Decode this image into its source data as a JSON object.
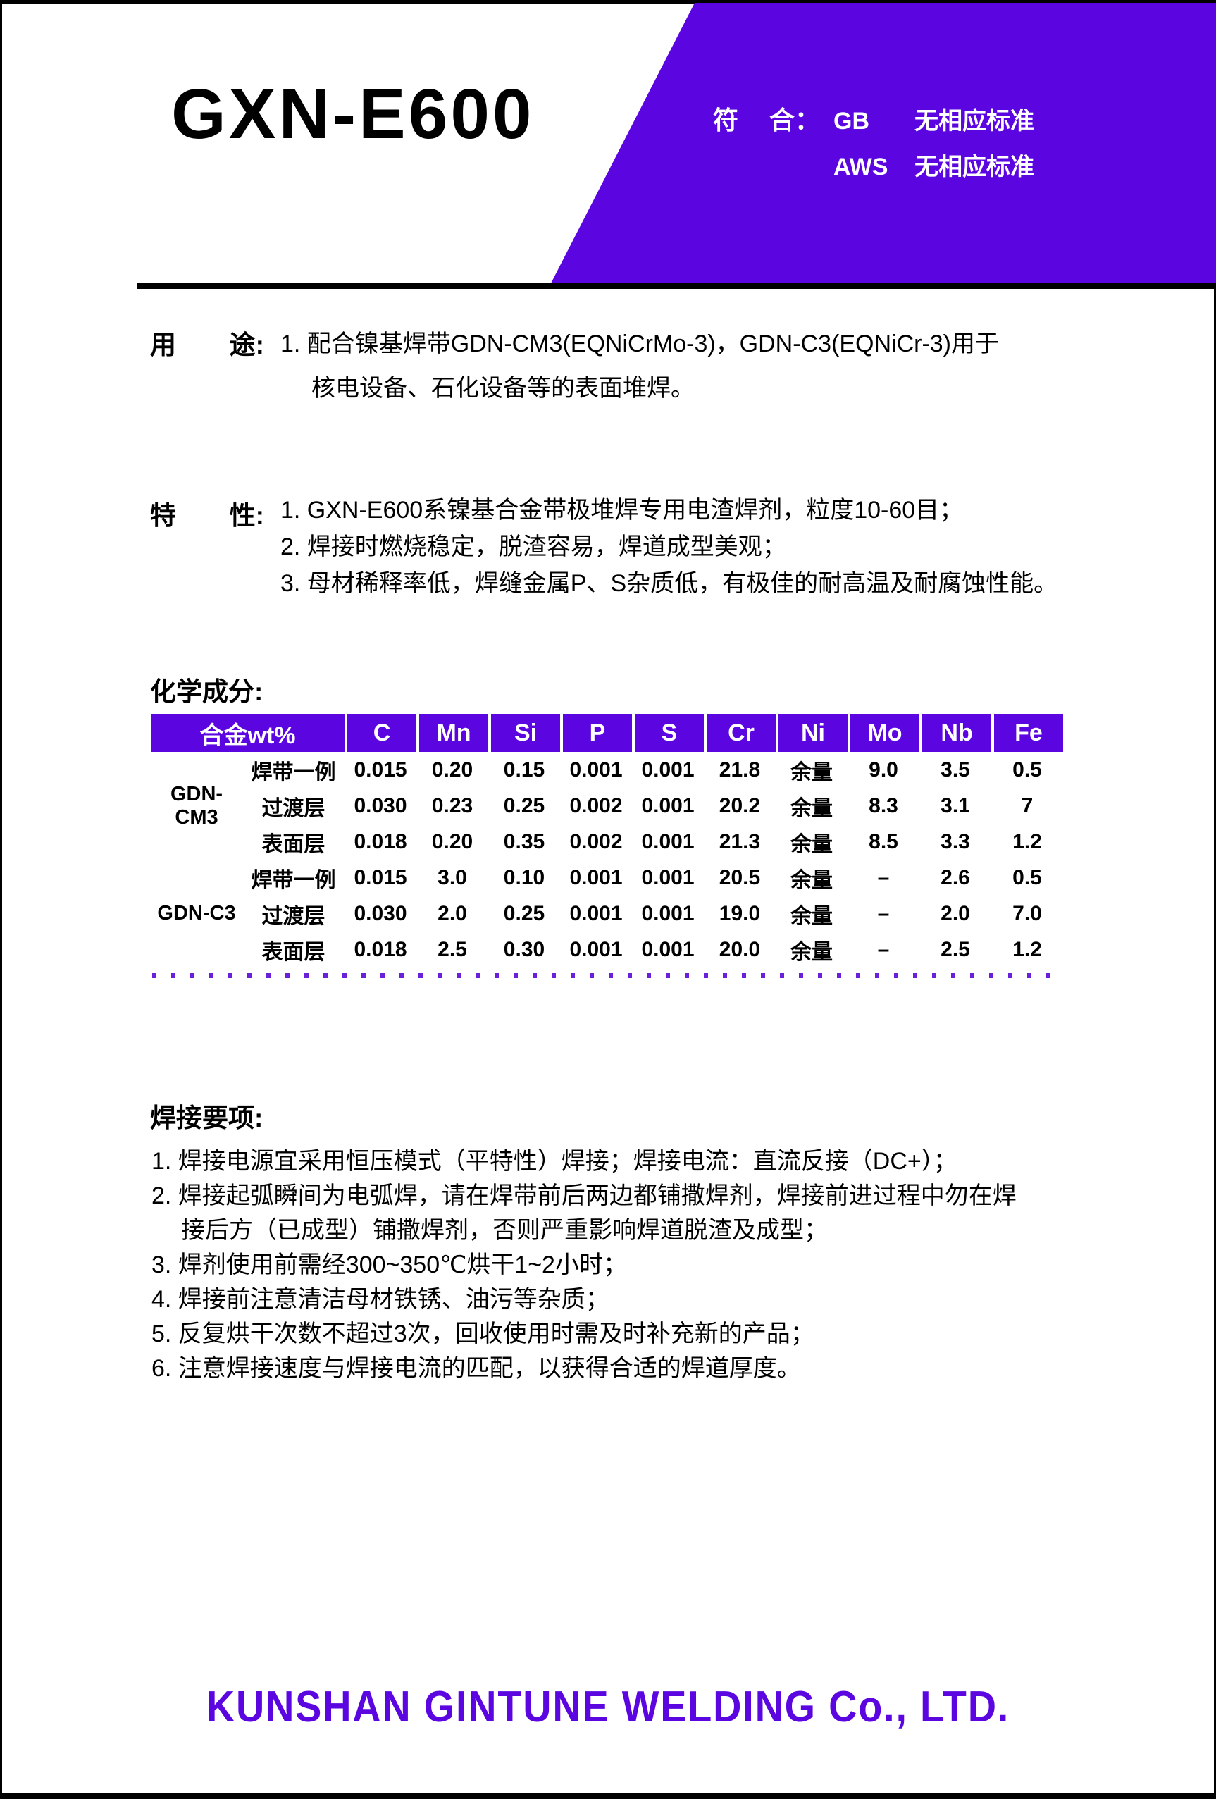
{
  "page": {
    "title": "GXN-E600",
    "colors": {
      "accent": "#5B06E1",
      "ink": "#000000",
      "paper": "#FFFFFF",
      "dotted_rule": "#6A1FD9"
    }
  },
  "standards": {
    "label_char1": "符",
    "label_char2": "合：",
    "rows": [
      {
        "code": "GB",
        "status": "无相应标准"
      },
      {
        "code": "AWS",
        "status": "无相应标准"
      }
    ]
  },
  "usage": {
    "label_char1": "用",
    "label_char2": "途:",
    "lines": [
      "1. 配合镍基焊带GDN-CM3(EQNiCrMo-3)，GDN-C3(EQNiCr-3)用于",
      "核电设备、石化设备等的表面堆焊。"
    ]
  },
  "features": {
    "label_char1": "特",
    "label_char2": "性:",
    "items": [
      "1. GXN-E600系镍基合金带极堆焊专用电渣焊剂，粒度10-60目；",
      "2. 焊接时燃烧稳定，脱渣容易，焊道成型美观；",
      "3. 母材稀释率低，焊缝金属P、S杂质低，有极佳的耐高温及耐腐蚀性能。"
    ]
  },
  "composition": {
    "heading": "化学成分:",
    "table": {
      "header": [
        "合金wt%",
        "C",
        "Mn",
        "Si",
        "P",
        "S",
        "Cr",
        "Ni",
        "Mo",
        "Nb",
        "Fe"
      ],
      "groups": [
        {
          "name": "GDN-CM3",
          "rows": [
            {
              "layer": "焊带一例",
              "values": [
                "0.015",
                "0.20",
                "0.15",
                "0.001",
                "0.001",
                "21.8",
                "余量",
                "9.0",
                "3.5",
                "0.5"
              ]
            },
            {
              "layer": "过渡层",
              "values": [
                "0.030",
                "0.23",
                "0.25",
                "0.002",
                "0.001",
                "20.2",
                "余量",
                "8.3",
                "3.1",
                "7"
              ]
            },
            {
              "layer": "表面层",
              "values": [
                "0.018",
                "0.20",
                "0.35",
                "0.002",
                "0.001",
                "21.3",
                "余量",
                "8.5",
                "3.3",
                "1.2"
              ]
            }
          ]
        },
        {
          "name": "GDN-C3",
          "rows": [
            {
              "layer": "焊带一例",
              "values": [
                "0.015",
                "3.0",
                "0.10",
                "0.001",
                "0.001",
                "20.5",
                "余量",
                "–",
                "2.6",
                "0.5"
              ]
            },
            {
              "layer": "过渡层",
              "values": [
                "0.030",
                "2.0",
                "0.25",
                "0.001",
                "0.001",
                "19.0",
                "余量",
                "–",
                "2.0",
                "7.0"
              ]
            },
            {
              "layer": "表面层",
              "values": [
                "0.018",
                "2.5",
                "0.30",
                "0.001",
                "0.001",
                "20.0",
                "余量",
                "–",
                "2.5",
                "1.2"
              ]
            }
          ]
        }
      ]
    }
  },
  "welding": {
    "heading": "焊接要项:",
    "lines": [
      {
        "text": "1. 焊接电源宜采用恒压模式（平特性）焊接；焊接电流：直流反接（DC+）；",
        "indent": false
      },
      {
        "text": "2. 焊接起弧瞬间为电弧焊，请在焊带前后两边都铺撒焊剂，焊接前进过程中勿在焊",
        "indent": false
      },
      {
        "text": "接后方（已成型）铺撒焊剂，否则严重影响焊道脱渣及成型；",
        "indent": true
      },
      {
        "text": "3. 焊剂使用前需经300~350℃烘干1~2小时；",
        "indent": false
      },
      {
        "text": "4. 焊接前注意清洁母材铁锈、油污等杂质；",
        "indent": false
      },
      {
        "text": "5. 反复烘干次数不超过3次，回收使用时需及时补充新的产品；",
        "indent": false
      },
      {
        "text": "6. 注意焊接速度与焊接电流的匹配，以获得合适的焊道厚度。",
        "indent": false
      }
    ]
  },
  "footer": {
    "company": "KUNSHAN  GINTUNE  WELDING  Co.,  LTD."
  }
}
